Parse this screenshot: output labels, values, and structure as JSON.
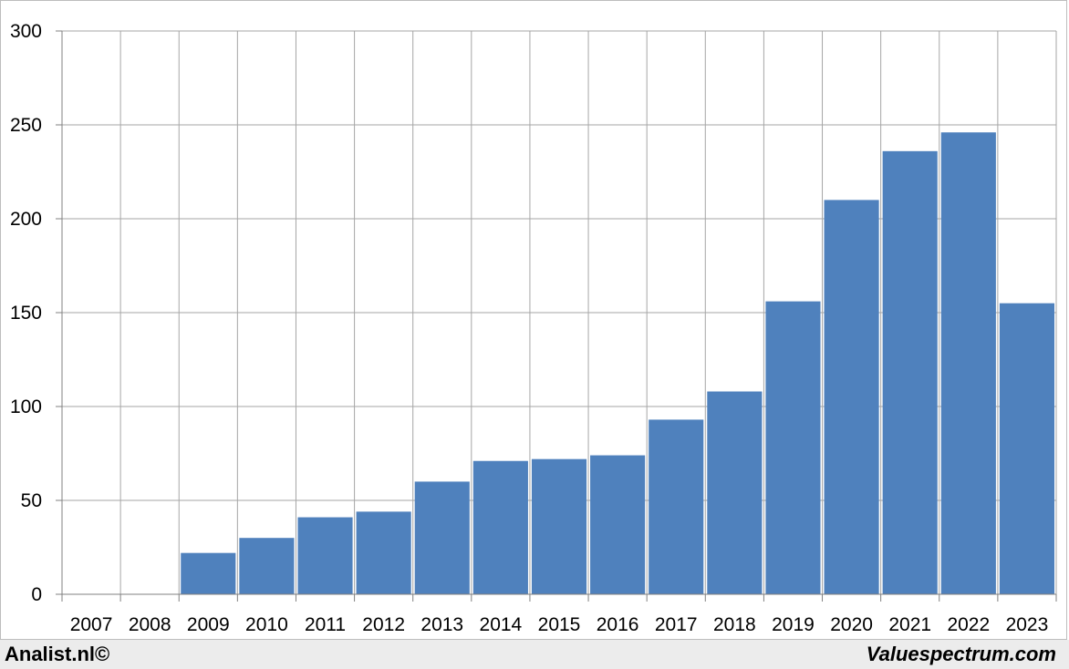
{
  "chart_data": {
    "type": "bar",
    "categories": [
      "2007",
      "2008",
      "2009",
      "2010",
      "2011",
      "2012",
      "2013",
      "2014",
      "2015",
      "2016",
      "2017",
      "2018",
      "2019",
      "2020",
      "2021",
      "2022",
      "2023"
    ],
    "values": [
      0,
      0,
      22,
      30,
      41,
      44,
      60,
      71,
      72,
      74,
      93,
      108,
      156,
      210,
      236,
      246,
      155
    ],
    "ylim": [
      0,
      300
    ],
    "yticks": [
      0,
      50,
      100,
      150,
      200,
      250,
      300
    ],
    "grid": true,
    "colors": {
      "bar": "#4f81bd",
      "grid": "#a6a6a6",
      "axis": "#808080"
    }
  },
  "footer": {
    "left_text": "Analist.nl©",
    "right_text": "Valuespectrum.com"
  }
}
